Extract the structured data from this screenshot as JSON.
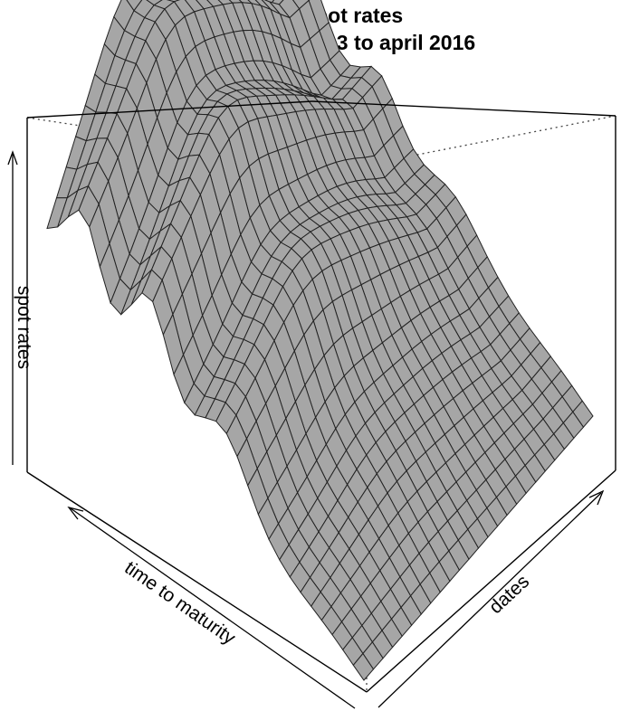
{
  "chart_data": {
    "type": "surface",
    "title": [
      "Monthly spot rates",
      "from december 2013 to april 2016"
    ],
    "xlabel": "time to maturity",
    "ylabel": "dates",
    "zlabel": "spot rates",
    "colors": {
      "surface_fill": "#a6a6a6",
      "mesh_line": "#222222",
      "box_line": "#000000"
    },
    "grid": false,
    "box": true,
    "ticks": false
  }
}
